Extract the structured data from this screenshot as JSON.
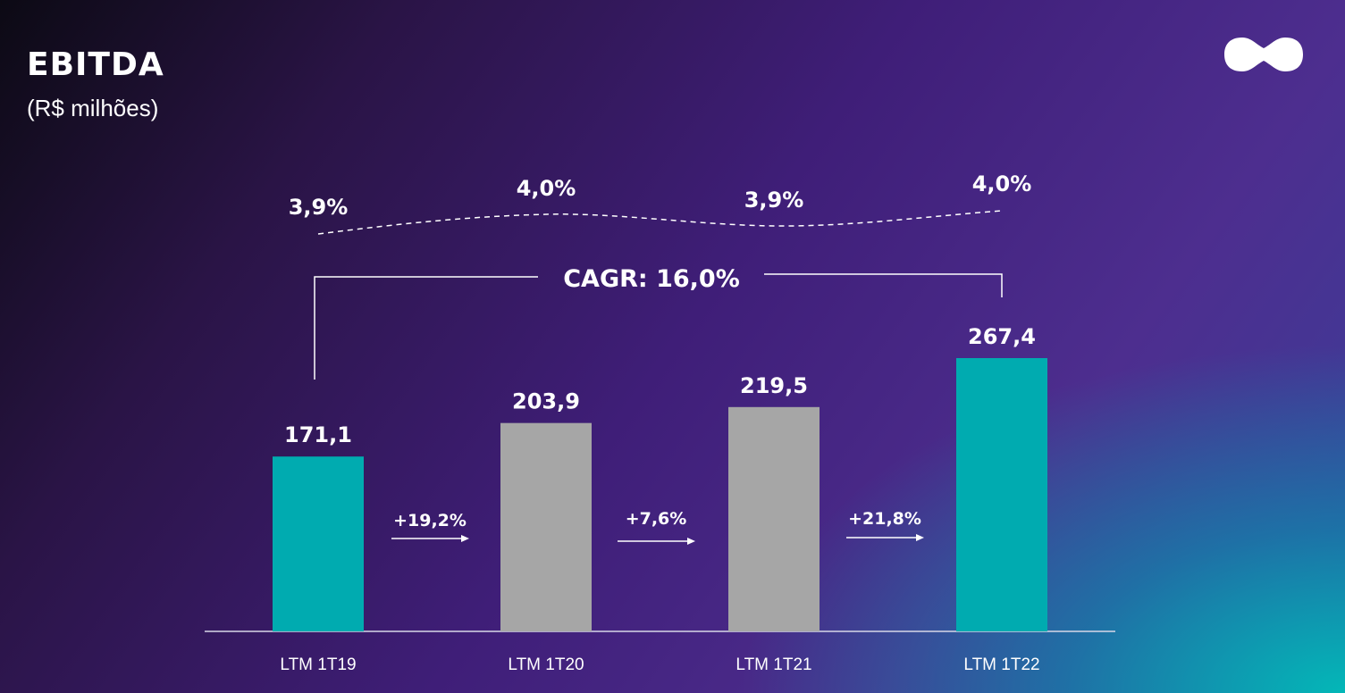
{
  "header": {
    "title": "EBITDA",
    "subtitle": "(R$ milhões)"
  },
  "logo": {
    "icon": "infinity-blob-icon"
  },
  "colors": {
    "highlight_bar": "#00ABB0",
    "neutral_bar": "#A6A6A6",
    "text": "#FFFFFF"
  },
  "chart_data": {
    "type": "bar",
    "categories": [
      "LTM 1T19",
      "LTM 1T20",
      "LTM 1T21",
      "LTM 1T22"
    ],
    "values": [
      171.1,
      203.9,
      219.5,
      267.4
    ],
    "value_labels": [
      "171,1",
      "203,9",
      "219,5",
      "267,4"
    ],
    "bar_colors": [
      "#00ABB0",
      "#A6A6A6",
      "#A6A6A6",
      "#00ABB0"
    ],
    "margins": [
      "3,9%",
      "4,0%",
      "3,9%",
      "4,0%"
    ],
    "growth": [
      "+19,2%",
      "+7,6%",
      "+21,8%"
    ],
    "cagr_label": "CAGR: 16,0%",
    "ylim": [
      0,
      300
    ],
    "grid": false,
    "legend": "none"
  }
}
